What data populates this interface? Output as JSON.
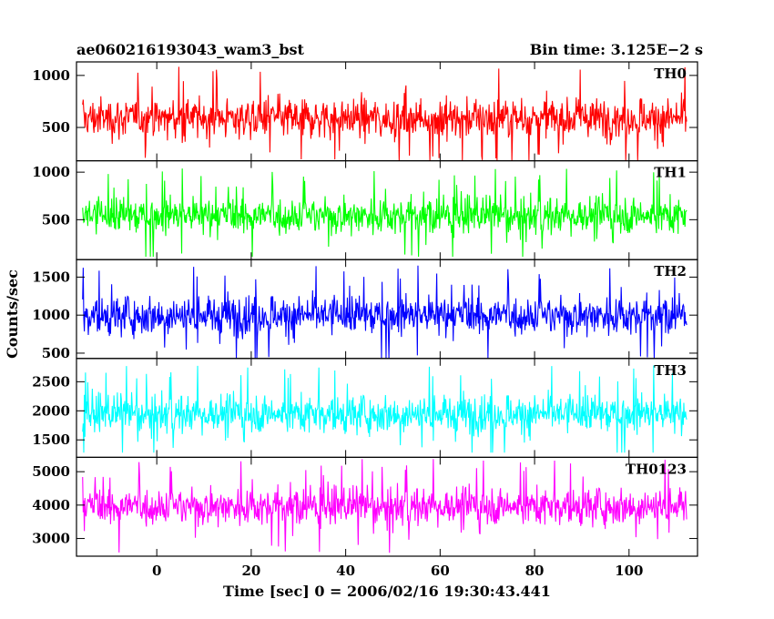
{
  "chart_data": {
    "type": "line",
    "title_left": "ae060216193043_wam3_bst",
    "title_right": "Bin time: 3.125E−2 s",
    "xlabel": "Time [sec] 0 = 2006/02/16 19:30:43.441",
    "ylabel": "Counts/sec",
    "xlim": [
      -17,
      114.5
    ],
    "x_ticks": [
      0,
      20,
      40,
      60,
      80,
      100
    ],
    "x_tick_labels": [
      "0",
      "20",
      "40",
      "60",
      "80",
      "100"
    ],
    "data_range": [
      -15.7,
      112.2
    ],
    "panels": [
      {
        "name": "TH0",
        "color": "#ff0000",
        "ylim": [
          180,
          1130
        ],
        "y_ticks": [
          500,
          1000
        ],
        "y_tick_labels": [
          "500",
          "1000"
        ],
        "mean": 590,
        "spread": 250,
        "min_clip": 180,
        "max_clip": 1130
      },
      {
        "name": "TH1",
        "color": "#00ff00",
        "ylim": [
          80,
          1120
        ],
        "y_ticks": [
          500,
          1000
        ],
        "y_tick_labels": [
          "500",
          "1000"
        ],
        "mean": 545,
        "spread": 250,
        "min_clip": 110,
        "max_clip": 1120
      },
      {
        "name": "TH2",
        "color": "#0000ff",
        "ylim": [
          430,
          1730
        ],
        "y_ticks": [
          500,
          1000,
          1500
        ],
        "y_tick_labels": [
          "500",
          "1000",
          "1500"
        ],
        "mean": 1000,
        "spread": 330,
        "min_clip": 430,
        "max_clip": 1730
      },
      {
        "name": "TH3",
        "color": "#00ffff",
        "ylim": [
          1200,
          2900
        ],
        "y_ticks": [
          1500,
          2000,
          2500
        ],
        "y_tick_labels": [
          "1500",
          "2000",
          "2500"
        ],
        "mean": 1950,
        "spread": 420,
        "min_clip": 1280,
        "max_clip": 2900
      },
      {
        "name": "TH0123",
        "color": "#ff00ff",
        "ylim": [
          2470,
          5430
        ],
        "y_ticks": [
          3000,
          4000,
          5000
        ],
        "y_tick_labels": [
          "3000",
          "4000",
          "5000"
        ],
        "mean": 3970,
        "spread": 720,
        "min_clip": 2470,
        "max_clip": 5430
      }
    ]
  }
}
